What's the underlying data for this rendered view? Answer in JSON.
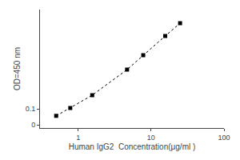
{
  "chart_data": {
    "type": "line",
    "x": [
      0.5,
      0.78,
      1.56,
      4.69,
      7.81,
      15.63,
      25.0
    ],
    "values": [
      0.056,
      0.105,
      0.185,
      0.345,
      0.435,
      0.555,
      0.635
    ],
    "xlabel": "Human IgG2  Concentration(μg/ml )",
    "ylabel": "OD=450 nm",
    "xlim": [
      0.3,
      100
    ],
    "ylim": [
      -0.02,
      0.72
    ],
    "xticks": [
      1,
      10,
      100
    ],
    "yticks": [
      0,
      0.1
    ],
    "log": "x",
    "grid": false,
    "color": "black",
    "marker": "square",
    "line_style": "dotted"
  }
}
